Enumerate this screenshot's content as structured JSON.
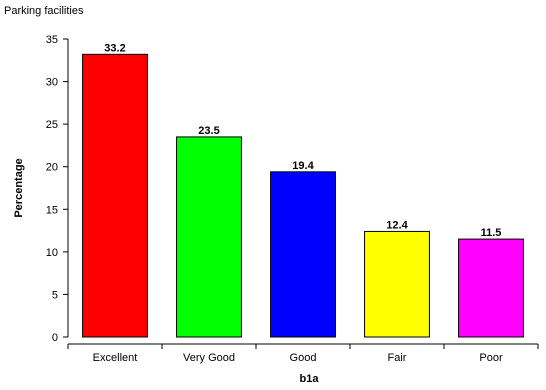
{
  "chart_data": {
    "type": "bar",
    "title": "Parking facilities",
    "xlabel": "b1a",
    "ylabel": "Percentage",
    "categories": [
      "Excellent",
      "Very Good",
      "Good",
      "Fair",
      "Poor"
    ],
    "values": [
      33.2,
      23.5,
      19.4,
      12.4,
      11.5
    ],
    "value_labels": [
      "33.2",
      "23.5",
      "19.4",
      "12.4",
      "11.5"
    ],
    "colors": [
      "#ff0000",
      "#00ff00",
      "#0000ff",
      "#ffff00",
      "#ff00ff"
    ],
    "ylim": [
      0,
      35
    ],
    "yticks": [
      0,
      5,
      10,
      15,
      20,
      25,
      30,
      35
    ],
    "grid": false,
    "legend": "none"
  }
}
